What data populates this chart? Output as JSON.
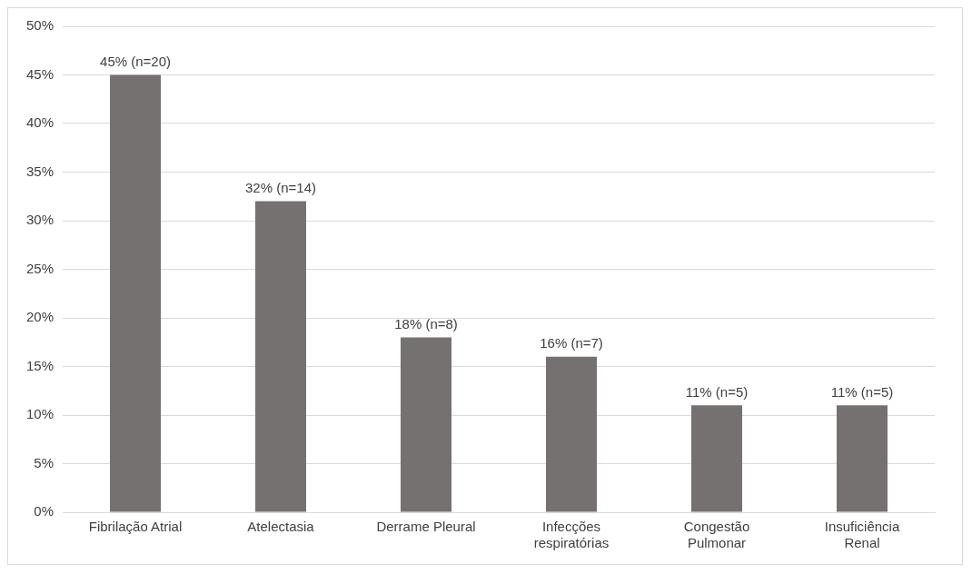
{
  "chart_data": {
    "type": "bar",
    "categories": [
      "Fibrilação Atrial",
      "Atelectasia",
      "Derrame Pleural",
      "Infecções respiratórias",
      "Congestão Pulmonar",
      "Insuficiência Renal"
    ],
    "values": [
      45,
      32,
      18,
      16,
      11,
      11
    ],
    "value_labels": [
      "45% (n=20)",
      "32% (n=14)",
      "18% (n=8)",
      "16% (n=7)",
      "11% (n=5)",
      "11% (n=5)"
    ],
    "color": "#767171",
    "ylim": [
      0,
      50
    ],
    "yticks": [
      {
        "value": 0,
        "label": "0%"
      },
      {
        "value": 5,
        "label": "5%"
      },
      {
        "value": 10,
        "label": "10%"
      },
      {
        "value": 15,
        "label": "15%"
      },
      {
        "value": 20,
        "label": "20%"
      },
      {
        "value": 25,
        "label": "25%"
      },
      {
        "value": 30,
        "label": "30%"
      },
      {
        "value": 35,
        "label": "35%"
      },
      {
        "value": 40,
        "label": "40%"
      },
      {
        "value": 45,
        "label": "45%"
      },
      {
        "value": 50,
        "label": "50%"
      }
    ],
    "grid": "y"
  }
}
